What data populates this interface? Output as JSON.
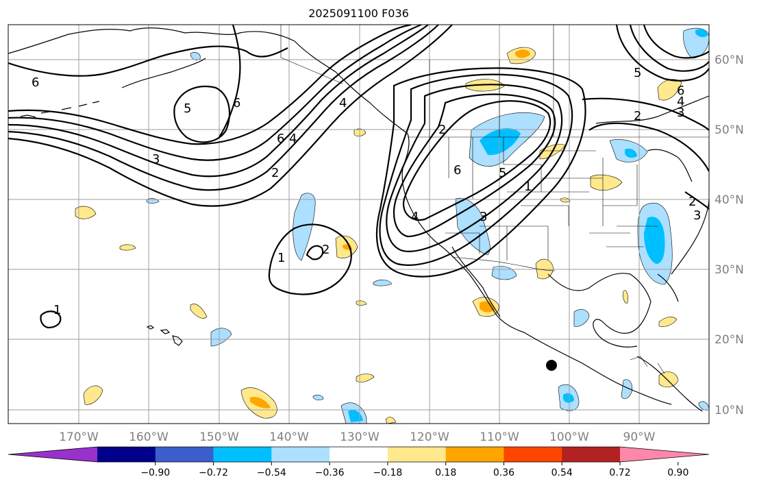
{
  "title": "2025091100 F036",
  "lat_labels": [
    "60°N",
    "50°N",
    "40°N",
    "30°N",
    "20°N",
    "10°N"
  ],
  "lon_labels": [
    "170°W",
    "160°W",
    "150°W",
    "140°W",
    "130°W",
    "120°W",
    "110°W",
    "100°W",
    "90°W"
  ],
  "colorbar": {
    "tick_labels": [
      "−0.90",
      "−0.72",
      "−0.54",
      "−0.36",
      "−0.18",
      "0.18",
      "0.36",
      "0.54",
      "0.72",
      "0.90"
    ],
    "colors": [
      "#9932CC",
      "#00008B",
      "#3A5FCD",
      "#00BFFF",
      "#ADDFFF",
      "#FFFFFF",
      "#FFE98C",
      "#FFA500",
      "#FF4500",
      "#B22222",
      "#FF88AA"
    ]
  },
  "contour_labels": [
    "6",
    "5",
    "6",
    "6",
    "4",
    "3",
    "2",
    "2",
    "6",
    "5",
    "4",
    "3",
    "2",
    "1",
    "6",
    "4",
    "3",
    "2",
    "1",
    "5",
    "4",
    "3",
    "2",
    "1"
  ],
  "marker": "location-dot"
}
